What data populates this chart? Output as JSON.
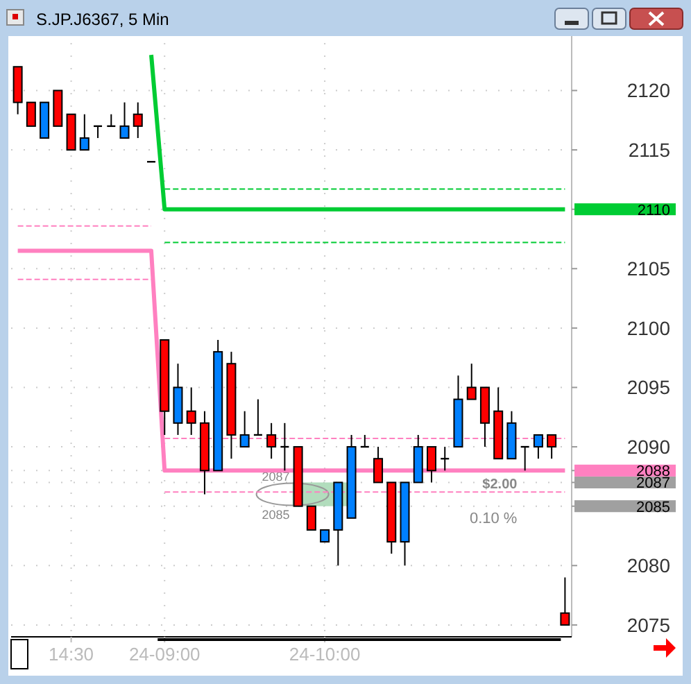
{
  "chart_data": {
    "type": "candlestick",
    "title": "S.JP.J6367, 5 Min",
    "categories": [
      null,
      null,
      null,
      null,
      "14:30",
      null,
      null,
      null,
      null,
      null,
      null,
      "24-09:00",
      null,
      null,
      null,
      null,
      null,
      null,
      null,
      null,
      null,
      null,
      null,
      "24-10:00",
      null,
      null,
      null,
      null,
      null,
      null,
      null,
      null,
      null,
      null,
      null,
      null,
      null,
      null,
      null,
      null,
      null,
      null
    ],
    "ohlc": [
      [
        2122,
        2122,
        2118,
        2119
      ],
      [
        2119,
        2119,
        2117,
        2117
      ],
      [
        2116,
        2119,
        2116,
        2119
      ],
      [
        2120,
        2120,
        2117,
        2117
      ],
      [
        2118,
        2118,
        2115,
        2115
      ],
      [
        2115,
        2118,
        2115,
        2116
      ],
      [
        2117,
        2117,
        2116,
        2117
      ],
      [
        2117,
        2118,
        2117,
        2117
      ],
      [
        2116,
        2119,
        2116,
        2117
      ],
      [
        2118,
        2119,
        2116,
        2117
      ],
      [
        2114,
        2114,
        2114,
        2114
      ],
      [
        2099,
        2099,
        2091,
        2093
      ],
      [
        2092,
        2097,
        2091,
        2095
      ],
      [
        2093,
        2095,
        2091,
        2092
      ],
      [
        2092,
        2093,
        2086,
        2088
      ],
      [
        2088,
        2099,
        2088,
        2098
      ],
      [
        2097,
        2098,
        2089,
        2091
      ],
      [
        2090,
        2093,
        2090,
        2091
      ],
      [
        2091,
        2094,
        2091,
        2091
      ],
      [
        2091,
        2092,
        2089,
        2090
      ],
      [
        2090,
        2092,
        2088,
        2090
      ],
      [
        2090,
        2090,
        2085,
        2085
      ],
      [
        2085,
        2085,
        2083,
        2083
      ],
      [
        2082,
        2083,
        2082,
        2083
      ],
      [
        2083,
        2087,
        2080,
        2087
      ],
      [
        2084,
        2091,
        2084,
        2090
      ],
      [
        2090,
        2091,
        2090,
        2090
      ],
      [
        2089,
        2090,
        2087,
        2087
      ],
      [
        2087,
        2087,
        2081,
        2082
      ],
      [
        2082,
        2087,
        2080,
        2087
      ],
      [
        2087,
        2091,
        2087,
        2090
      ],
      [
        2090,
        2090,
        2087,
        2088
      ],
      [
        2089,
        2090,
        2088,
        2089
      ],
      [
        2090,
        2096,
        2090,
        2094
      ],
      [
        2095,
        2097,
        2094,
        2094
      ],
      [
        2095,
        2095,
        2090,
        2092
      ],
      [
        2093,
        2095,
        2089,
        2089
      ],
      [
        2089,
        2093,
        2089,
        2092
      ],
      [
        2090,
        2090,
        2088,
        2090
      ],
      [
        2090,
        2091,
        2089,
        2091
      ],
      [
        2091,
        2091,
        2089,
        2090
      ],
      [
        2076,
        2079,
        2075,
        2075
      ]
    ],
    "colors": [
      "#ff0000",
      "#ff0000",
      "#0080ff",
      "#ff0000",
      "#ff0000",
      "#0080ff",
      "#000000",
      "#000000",
      "#0080ff",
      "#ff0000",
      "#000000",
      "#ff0000",
      "#0080ff",
      "#ff0000",
      "#ff0000",
      "#0080ff",
      "#ff0000",
      "#0080ff",
      "#000000",
      "#ff0000",
      "#000000",
      "#ff0000",
      "#ff0000",
      "#0080ff",
      "#0080ff",
      "#0080ff",
      "#000000",
      "#ff0000",
      "#ff0000",
      "#0080ff",
      "#0080ff",
      "#ff0000",
      "#000000",
      "#0080ff",
      "#ff0000",
      "#ff0000",
      "#ff0000",
      "#0080ff",
      "#000000",
      "#0080ff",
      "#ff0000",
      "#ff0000"
    ],
    "series": [
      {
        "type": "line",
        "color": "#00cc33",
        "line_style": "solid",
        "values": [
          null,
          null,
          null,
          null,
          null,
          null,
          null,
          null,
          null,
          null,
          2123,
          2110,
          2110,
          2110,
          2110,
          2110,
          2110,
          2110,
          2110,
          2110,
          2110,
          2110,
          2110,
          2110,
          2110,
          2110,
          2110,
          2110,
          2110,
          2110,
          2110,
          2110,
          2110,
          2110,
          2110,
          2110,
          2110,
          2110,
          2110,
          2110,
          2110,
          2110
        ]
      },
      {
        "type": "line",
        "color": "#00cc33",
        "line_style": "dashed",
        "values": [
          null,
          null,
          null,
          null,
          null,
          null,
          null,
          null,
          null,
          null,
          null,
          2111.7,
          2111.7,
          2111.7,
          2111.7,
          2111.7,
          2111.7,
          2111.7,
          2111.7,
          2111.7,
          2111.7,
          2111.7,
          2111.7,
          2111.7,
          2111.7,
          2111.7,
          2111.7,
          2111.7,
          2111.7,
          2111.7,
          2111.7,
          2111.7,
          2111.7,
          2111.7,
          2111.7,
          2111.7,
          2111.7,
          2111.7,
          2111.7,
          2111.7,
          2111.7,
          2111.7
        ]
      },
      {
        "type": "line",
        "color": "#00cc33",
        "line_style": "dashed",
        "values": [
          null,
          null,
          null,
          null,
          null,
          null,
          null,
          null,
          null,
          null,
          null,
          2107.2,
          2107.2,
          2107.2,
          2107.2,
          2107.2,
          2107.2,
          2107.2,
          2107.2,
          2107.2,
          2107.2,
          2107.2,
          2107.2,
          2107.2,
          2107.2,
          2107.2,
          2107.2,
          2107.2,
          2107.2,
          2107.2,
          2107.2,
          2107.2,
          2107.2,
          2107.2,
          2107.2,
          2107.2,
          2107.2,
          2107.2,
          2107.2,
          2107.2,
          2107.2,
          2107.2
        ]
      },
      {
        "type": "line",
        "color": "#ff80c0",
        "line_style": "solid",
        "values": [
          2106.5,
          2106.5,
          2106.5,
          2106.5,
          2106.5,
          2106.5,
          2106.5,
          2106.5,
          2106.5,
          2106.5,
          2106.5,
          2088,
          2088,
          2088,
          2088,
          2088,
          2088,
          2088,
          2088,
          2088,
          2088,
          2088,
          2088,
          2088,
          2088,
          2088,
          2088,
          2088,
          2088,
          2088,
          2088,
          2088,
          2088,
          2088,
          2088,
          2088,
          2088,
          2088,
          2088,
          2088,
          2088,
          2088
        ]
      },
      {
        "type": "line",
        "color": "#ff80c0",
        "line_style": "dashed",
        "values": [
          2108.6,
          2108.6,
          2108.6,
          2108.6,
          2108.6,
          2108.6,
          2108.6,
          2108.6,
          2108.6,
          2108.6,
          2108.6,
          null,
          null,
          null,
          null,
          null,
          null,
          null,
          null,
          null,
          null,
          null,
          null,
          null,
          null,
          null,
          null,
          null,
          null,
          null,
          null,
          null,
          null,
          null,
          null,
          null,
          null,
          null,
          null,
          null,
          null,
          null
        ]
      },
      {
        "type": "line",
        "color": "#ff80c0",
        "line_style": "dashed",
        "values": [
          2104.1,
          2104.1,
          2104.1,
          2104.1,
          2104.1,
          2104.1,
          2104.1,
          2104.1,
          2104.1,
          2104.1,
          2104.1,
          null,
          null,
          null,
          null,
          null,
          null,
          null,
          null,
          null,
          null,
          null,
          null,
          null,
          null,
          null,
          null,
          null,
          null,
          null,
          null,
          null,
          null,
          null,
          null,
          null,
          null,
          null,
          null,
          null,
          null,
          null
        ]
      },
      {
        "type": "line",
        "color": "#ff80c0",
        "line_style": "dashed",
        "values": [
          null,
          null,
          null,
          null,
          null,
          null,
          null,
          null,
          null,
          null,
          null,
          2090.7,
          2090.7,
          2090.7,
          2090.7,
          2090.7,
          2090.7,
          2090.7,
          2090.7,
          2090.7,
          2090.7,
          2090.7,
          2090.7,
          2090.7,
          2090.7,
          2090.7,
          2090.7,
          2090.7,
          2090.7,
          2090.7,
          2090.7,
          2090.7,
          2090.7,
          2090.7,
          2090.7,
          2090.7,
          2090.7,
          2090.7,
          2090.7,
          2090.7,
          2090.7,
          2090.7
        ]
      },
      {
        "type": "line",
        "color": "#ff80c0",
        "line_style": "dashed",
        "values": [
          null,
          null,
          null,
          null,
          null,
          null,
          null,
          null,
          null,
          null,
          null,
          2086.2,
          2086.2,
          2086.2,
          2086.2,
          2086.2,
          2086.2,
          2086.2,
          2086.2,
          2086.2,
          2086.2,
          2086.2,
          2086.2,
          2086.2,
          2086.2,
          2086.2,
          2086.2,
          2086.2,
          2086.2,
          2086.2,
          2086.2,
          2086.2,
          2086.2,
          2086.2,
          2086.2,
          2086.2,
          2086.2,
          2086.2,
          2086.2,
          2086.2,
          2086.2,
          2086.2
        ]
      }
    ],
    "ylim": [
      2074,
      2124
    ],
    "yticks": [
      2075,
      2080,
      2085,
      2087,
      2088,
      2090,
      2095,
      2100,
      2105,
      2110,
      2115,
      2120
    ],
    "grid": true,
    "bands": [
      {
        "axis": "y",
        "from": 2085,
        "to": 2087,
        "color": "#9fd4ad"
      }
    ],
    "annotations": [
      "2087",
      "2085",
      {
        "text": "$2.00",
        "y": 2086
      },
      "0.10 %"
    ]
  }
}
